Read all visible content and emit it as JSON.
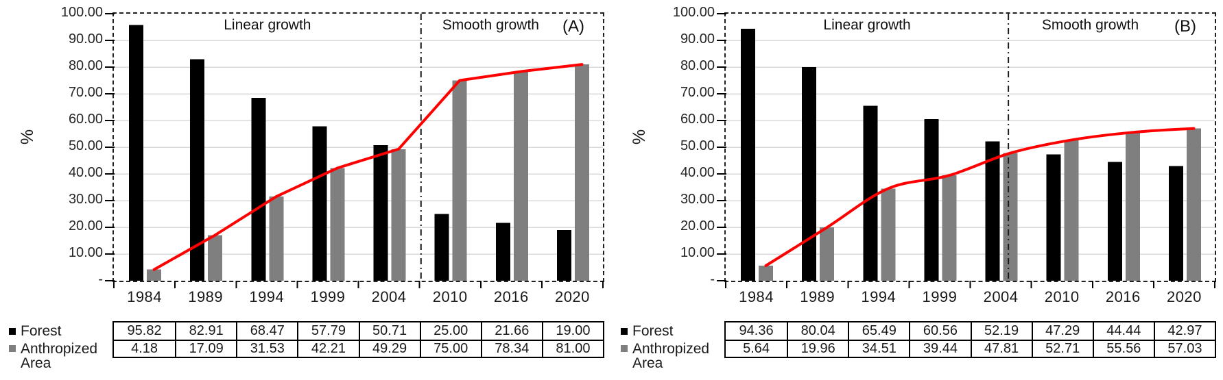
{
  "figure": {
    "description": "Two side-by-side bar charts with trend line comparing Forest vs Anthropized Area percentage over time",
    "accent_red": "#ff0000",
    "bar_black": "#000000",
    "bar_gray": "#7f7f7f",
    "gridline_color": "#d9d9d9"
  },
  "chart_data": [
    {
      "type": "bar",
      "panel_label": "(A)",
      "ylabel": "%",
      "ylim": [
        0,
        100
      ],
      "grid": true,
      "legend_position": "bottom-left",
      "y_ticks": [
        "100.00",
        "90.00",
        "80.00",
        "70.00",
        "60.00",
        "50.00",
        "40.00",
        "30.00",
        "20.00",
        "10.00",
        "-"
      ],
      "categories": [
        "1984",
        "1989",
        "1994",
        "1999",
        "2004",
        "2010",
        "2016",
        "2020"
      ],
      "series": [
        {
          "name": "Forest",
          "color": "#000000",
          "values": [
            95.82,
            82.91,
            68.47,
            57.79,
            50.71,
            25.0,
            21.66,
            19.0
          ]
        },
        {
          "name": "Anthropized Area",
          "color": "#7f7f7f",
          "values": [
            4.18,
            17.09,
            31.53,
            42.21,
            49.29,
            75.0,
            78.34,
            81.0
          ]
        }
      ],
      "trend_line": {
        "color": "#ff0000",
        "follows_series": "Anthropized Area",
        "smooth": false
      },
      "annotations": {
        "linear": "Linear growth",
        "smooth": "Smooth growth"
      },
      "divider_frac": 0.628
    },
    {
      "type": "bar",
      "panel_label": "(B)",
      "ylabel": "%",
      "ylim": [
        0,
        100
      ],
      "grid": true,
      "legend_position": "bottom-left",
      "y_ticks": [
        "100.00",
        "90.00",
        "80.00",
        "70.00",
        "60.00",
        "50.00",
        "40.00",
        "30.00",
        "20.00",
        "10.00",
        "-"
      ],
      "categories": [
        "1984",
        "1989",
        "1994",
        "1999",
        "2004",
        "2010",
        "2016",
        "2020"
      ],
      "series": [
        {
          "name": "Forest",
          "color": "#000000",
          "values": [
            94.36,
            80.04,
            65.49,
            60.56,
            52.19,
            47.29,
            44.44,
            42.97
          ]
        },
        {
          "name": "Anthropized Area",
          "color": "#7f7f7f",
          "values": [
            5.64,
            19.96,
            34.51,
            39.44,
            47.81,
            52.71,
            55.56,
            57.03
          ]
        }
      ],
      "trend_line": {
        "color": "#ff0000",
        "follows_series": "Anthropized Area",
        "smooth": true
      },
      "annotations": {
        "linear": "Linear growth",
        "smooth": "Smooth growth"
      },
      "divider_frac": 0.578
    }
  ]
}
